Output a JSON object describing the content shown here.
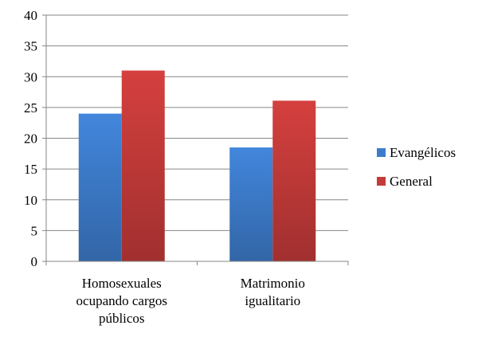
{
  "chart_data": {
    "type": "bar",
    "categories": [
      [
        "Homosexuales",
        "ocupando cargos",
        "públicos"
      ],
      [
        "Matrimonio",
        "igualitario"
      ]
    ],
    "series": [
      {
        "name": "Evangélicos",
        "values": [
          24,
          18.5
        ],
        "color": "#3d7ccc"
      },
      {
        "name": "General",
        "values": [
          31,
          26.1
        ],
        "color": "#c43b39"
      }
    ],
    "ylim": [
      0,
      40
    ],
    "yticks": [
      0,
      5,
      10,
      15,
      20,
      25,
      30,
      35,
      40
    ],
    "grid": true,
    "legend": "right",
    "title": "",
    "xlabel": "",
    "ylabel": ""
  }
}
